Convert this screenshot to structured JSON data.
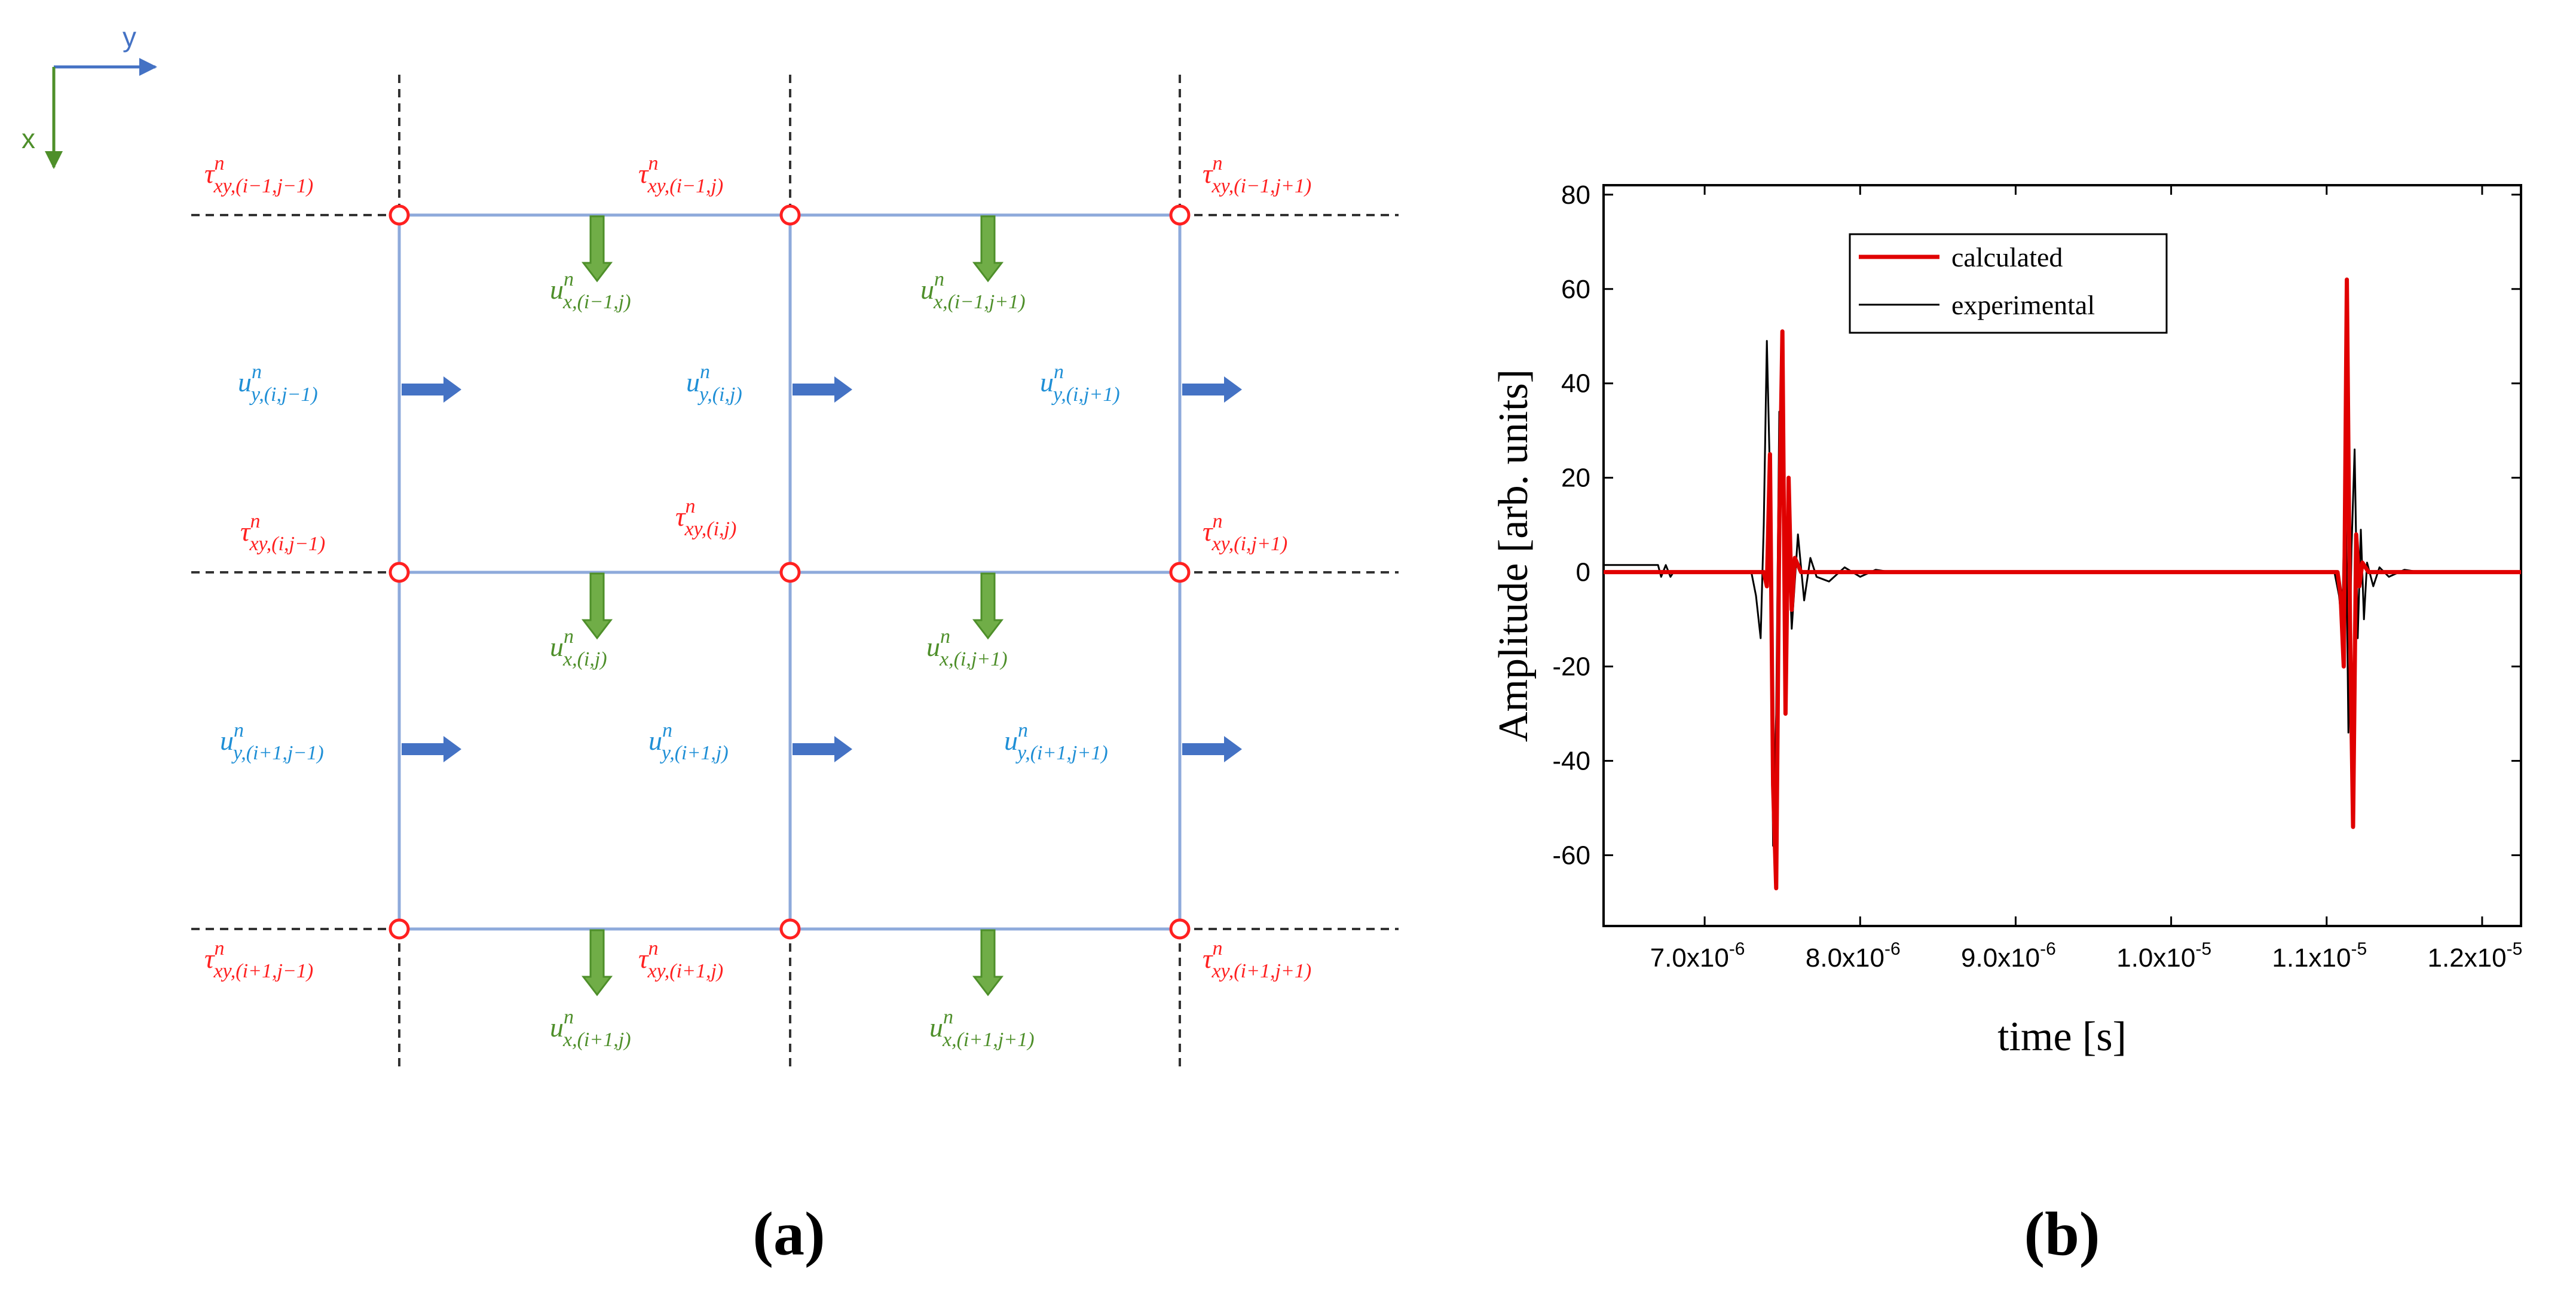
{
  "axes_indicator": {
    "y_label": "y",
    "x_label": "x"
  },
  "panel_labels": {
    "a": "(a)",
    "b": "(b)"
  },
  "superscript": "n",
  "grid_labels": {
    "tau": [
      {
        "sym": "τ",
        "sub": "xy,(i−1,j−1)"
      },
      {
        "sym": "τ",
        "sub": "xy,(i−1,j)"
      },
      {
        "sym": "τ",
        "sub": "xy,(i−1,j+1)"
      },
      {
        "sym": "τ",
        "sub": "xy,(i,j−1)"
      },
      {
        "sym": "τ",
        "sub": "xy,(i,j)"
      },
      {
        "sym": "τ",
        "sub": "xy,(i,j+1)"
      },
      {
        "sym": "τ",
        "sub": "xy,(i+1,j−1)"
      },
      {
        "sym": "τ",
        "sub": "xy,(i+1,j)"
      },
      {
        "sym": "τ",
        "sub": "xy,(i+1,j+1)"
      }
    ],
    "ux": [
      {
        "sym": "u",
        "sub": "x,(i−1,j)"
      },
      {
        "sym": "u",
        "sub": "x,(i−1,j+1)"
      },
      {
        "sym": "u",
        "sub": "x,(i,j)"
      },
      {
        "sym": "u",
        "sub": "x,(i,j+1)"
      },
      {
        "sym": "u",
        "sub": "x,(i+1,j)"
      },
      {
        "sym": "u",
        "sub": "x,(i+1,j+1)"
      }
    ],
    "uy": [
      {
        "sym": "u",
        "sub": "y,(i,j−1)"
      },
      {
        "sym": "u",
        "sub": "y,(i,j)"
      },
      {
        "sym": "u",
        "sub": "y,(i,j+1)"
      },
      {
        "sym": "u",
        "sub": "y,(i+1,j−1)"
      },
      {
        "sym": "u",
        "sub": "y,(i+1,j)"
      },
      {
        "sym": "u",
        "sub": "y,(i+1,j+1)"
      }
    ]
  },
  "colors": {
    "tau": "#ff2020",
    "ux": "#4e8f2a",
    "uy": "#1f8fd6",
    "grid_line": "#8eaadb",
    "arrow_blue": "#4472c4",
    "arrow_green": "#70ad47",
    "calculated": "#e00000",
    "experimental": "#000000"
  },
  "chart_data": {
    "type": "line",
    "title": "",
    "xlabel": "time [s]",
    "ylabel": "Amplitude [arb. units]",
    "xlim": [
      6.35e-06,
      1.225e-05
    ],
    "ylim": [
      -75,
      82
    ],
    "x_ticks": [
      {
        "value": 7e-06,
        "mant": "7.0x10",
        "exp": "-6"
      },
      {
        "value": 8e-06,
        "mant": "8.0x10",
        "exp": "-6"
      },
      {
        "value": 9e-06,
        "mant": "9.0x10",
        "exp": "-6"
      },
      {
        "value": 1e-05,
        "mant": "1.0x10",
        "exp": "-5"
      },
      {
        "value": 1.1e-05,
        "mant": "1.1x10",
        "exp": "-5"
      },
      {
        "value": 1.2e-05,
        "mant": "1.2x10",
        "exp": "-5"
      }
    ],
    "y_ticks": [
      {
        "value": 80,
        "label": "80"
      },
      {
        "value": 60,
        "label": "60"
      },
      {
        "value": 40,
        "label": "40"
      },
      {
        "value": 20,
        "label": "20"
      },
      {
        "value": 0,
        "label": "0"
      },
      {
        "value": -20,
        "label": "-20"
      },
      {
        "value": -40,
        "label": "-40"
      },
      {
        "value": -60,
        "label": "-60"
      }
    ],
    "legend_position": "top-center",
    "series": [
      {
        "name": "calculated",
        "x": [
          6.35e-06,
          7.38e-06,
          7.4e-06,
          7.42e-06,
          7.44e-06,
          7.46e-06,
          7.48e-06,
          7.5e-06,
          7.52e-06,
          7.54e-06,
          7.56e-06,
          7.58e-06,
          7.62e-06,
          1.107e-05,
          1.109e-05,
          1.111e-05,
          1.113e-05,
          1.115e-05,
          1.117e-05,
          1.119e-05,
          1.121e-05,
          1.123e-05,
          1.127e-05,
          1.225e-05
        ],
        "y": [
          0,
          0,
          -3,
          25,
          -45,
          -67,
          10,
          51,
          -30,
          20,
          -8,
          3,
          0,
          0,
          -5,
          -20,
          62,
          -10,
          -54,
          8,
          -3,
          2,
          0,
          0
        ]
      },
      {
        "name": "experimental",
        "x": [
          6.35e-06,
          6.5e-06,
          6.7e-06,
          6.72e-06,
          6.75e-06,
          6.78e-06,
          6.8e-06,
          7e-06,
          7.3e-06,
          7.33e-06,
          7.36e-06,
          7.38e-06,
          7.4e-06,
          7.42e-06,
          7.44e-06,
          7.46e-06,
          7.48e-06,
          7.5e-06,
          7.52e-06,
          7.54e-06,
          7.56e-06,
          7.6e-06,
          7.64e-06,
          7.68e-06,
          7.72e-06,
          7.8e-06,
          7.9e-06,
          8e-06,
          8.1e-06,
          8.2e-06,
          8.3e-06,
          1.1e-05,
          1.105e-05,
          1.108e-05,
          1.11e-05,
          1.112e-05,
          1.114e-05,
          1.116e-05,
          1.118e-05,
          1.12e-05,
          1.122e-05,
          1.124e-05,
          1.126e-05,
          1.13e-05,
          1.134e-05,
          1.14e-05,
          1.15e-05,
          1.16e-05,
          1.225e-05
        ],
        "y": [
          1.5,
          1.5,
          1.5,
          -1,
          1.5,
          -1,
          0,
          0,
          0,
          -5,
          -14,
          10,
          49,
          20,
          -58,
          -30,
          34,
          24,
          -18,
          5,
          -12,
          8,
          -6,
          3,
          -1,
          -2,
          1,
          -1,
          0.5,
          0,
          0,
          0,
          0,
          -5,
          -12,
          24,
          -34,
          5,
          26,
          -14,
          9,
          -10,
          2,
          -3,
          1,
          -1,
          0.5,
          0,
          0
        ]
      }
    ]
  }
}
